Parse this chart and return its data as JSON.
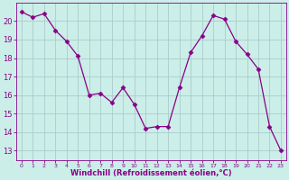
{
  "x": [
    0,
    1,
    2,
    3,
    4,
    5,
    6,
    7,
    8,
    9,
    10,
    11,
    12,
    13,
    14,
    15,
    16,
    17,
    18,
    19,
    20,
    21,
    22,
    23
  ],
  "y": [
    20.5,
    20.2,
    20.4,
    19.5,
    18.9,
    18.1,
    16.0,
    16.1,
    15.6,
    16.4,
    15.5,
    14.2,
    14.3,
    14.3,
    16.4,
    18.3,
    19.2,
    20.3,
    20.1,
    18.9,
    18.2,
    17.4,
    14.3,
    13.0
  ],
  "line_color": "#880088",
  "marker": "D",
  "marker_size": 2.5,
  "bg_color": "#cceee8",
  "grid_color": "#aacccc",
  "ylabel_values": [
    13,
    14,
    15,
    16,
    17,
    18,
    19,
    20
  ],
  "ylim": [
    12.5,
    21.0
  ],
  "xlim": [
    -0.5,
    23.5
  ],
  "xlabel": "Windchill (Refroidissement éolien,°C)",
  "xlabel_color": "#880088",
  "tick_color": "#880088",
  "axis_fontsize": 7.5
}
